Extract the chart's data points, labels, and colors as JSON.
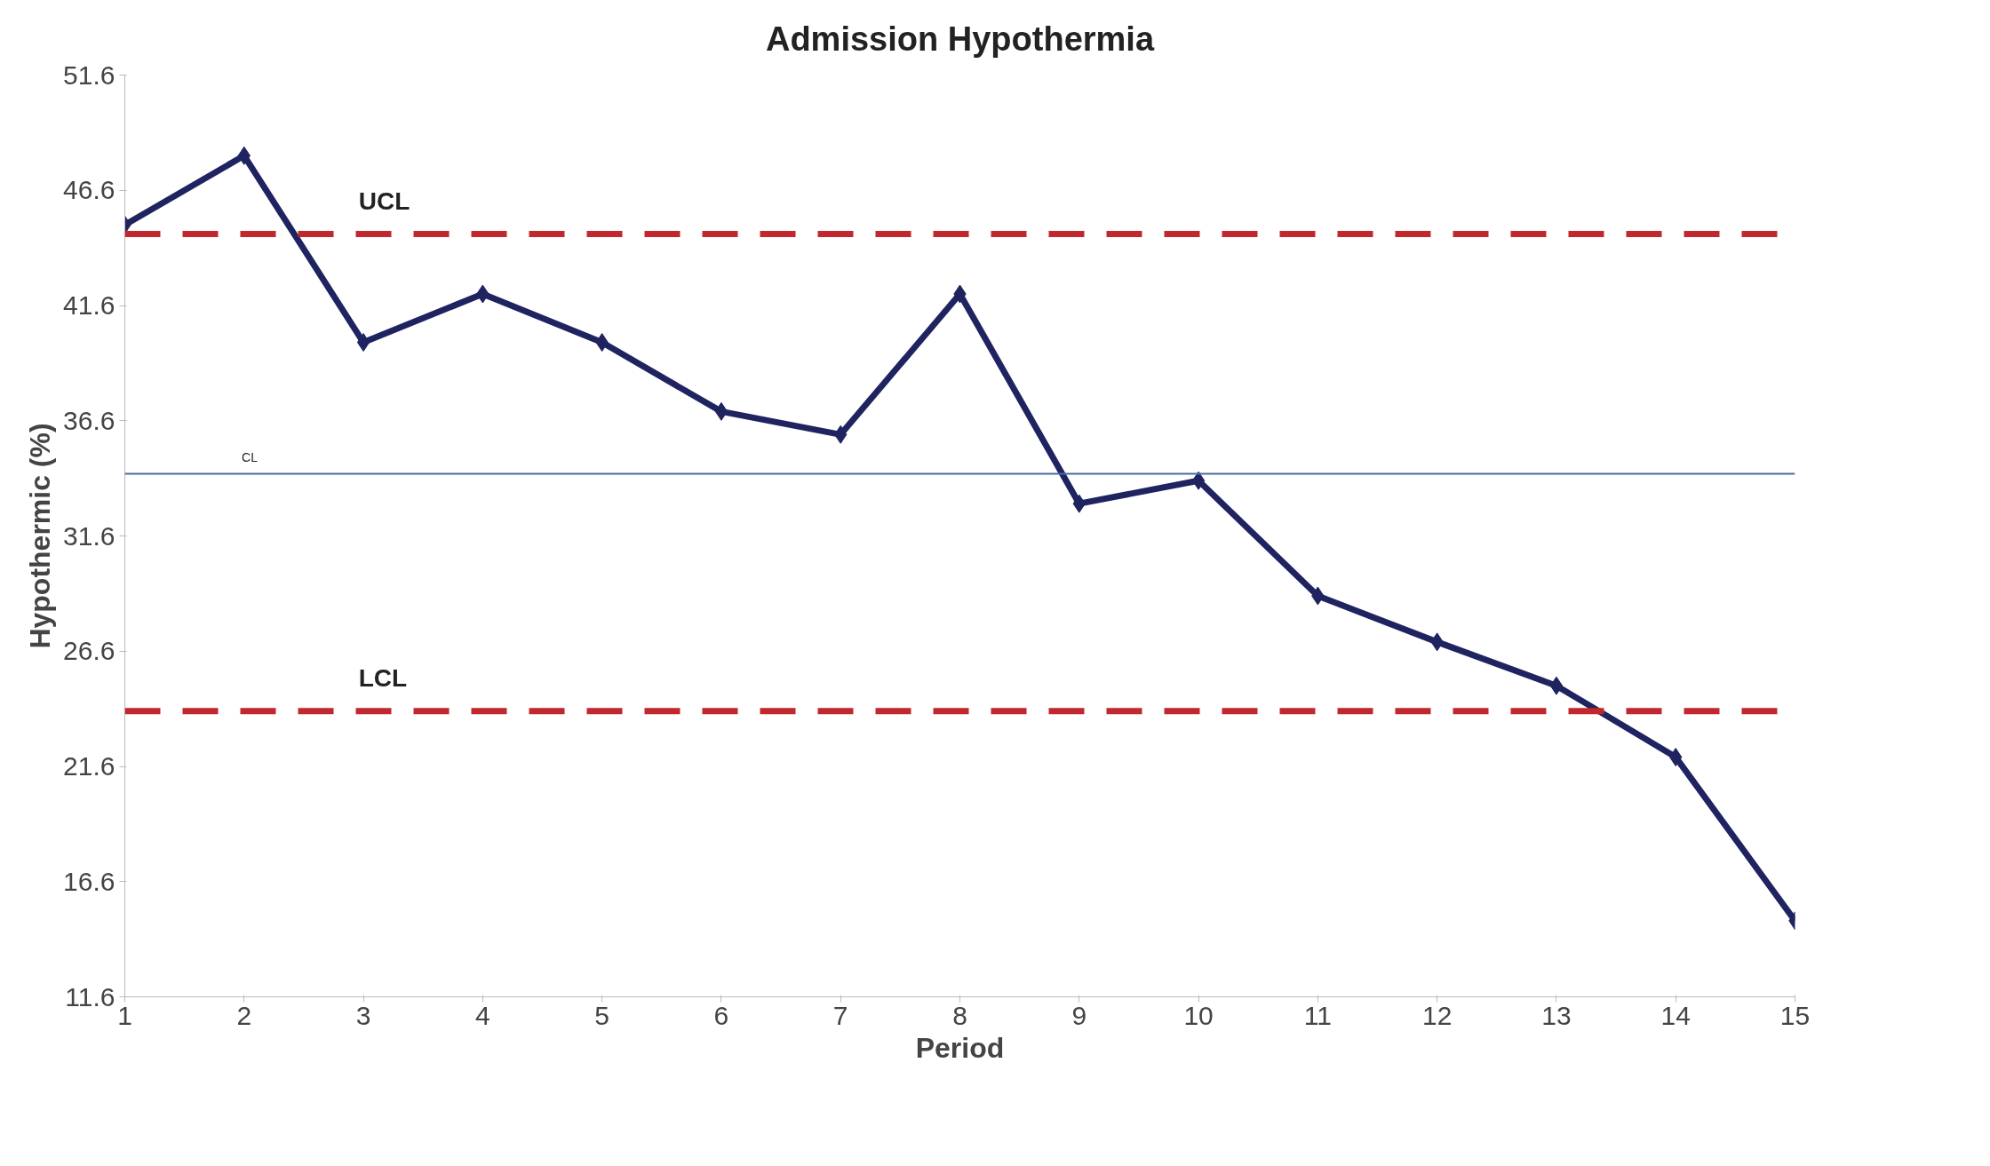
{
  "chart_data": {
    "type": "line",
    "title": "Admission Hypothermia",
    "xlabel": "Period",
    "ylabel": "Hypothermic (%)",
    "x": [
      1,
      2,
      3,
      4,
      5,
      6,
      7,
      8,
      9,
      10,
      11,
      12,
      13,
      14,
      15
    ],
    "series": [
      {
        "color": "#1f2461",
        "values": [
          45.1,
          48.1,
          40.0,
          42.1,
          40.0,
          37.0,
          36.0,
          42.1,
          33.0,
          34.0,
          29.0,
          27.0,
          25.1,
          22.0,
          14.9
        ]
      }
    ],
    "xlim": [
      1,
      15
    ],
    "xticks": [
      1,
      2,
      3,
      4,
      5,
      6,
      7,
      8,
      9,
      10,
      11,
      12,
      13,
      14,
      15
    ],
    "ylim": [
      11.6,
      51.6
    ],
    "yticks": [
      11.6,
      16.6,
      21.6,
      26.6,
      31.6,
      36.6,
      41.6,
      46.6,
      51.6
    ],
    "ref_lines": [
      {
        "axis": "y",
        "value": 44.7,
        "label": "UCL",
        "color": "#c0282d",
        "line_style": "dashed"
      },
      {
        "axis": "y",
        "value": 34.3,
        "label": "CL",
        "color": "#4a6aa5",
        "line_style": "solid"
      },
      {
        "axis": "y",
        "value": 24.0,
        "label": "LCL",
        "color": "#c0282d",
        "line_style": "dashed"
      }
    ],
    "marker": "diamond",
    "line_style": "solid",
    "grid": false
  }
}
